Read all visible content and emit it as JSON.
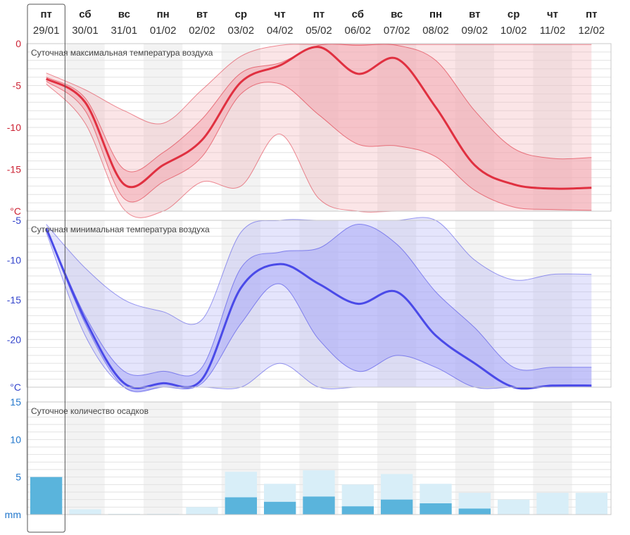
{
  "days": [
    {
      "name": "пт",
      "date": "29/01"
    },
    {
      "name": "сб",
      "date": "30/01"
    },
    {
      "name": "вс",
      "date": "31/01"
    },
    {
      "name": "пн",
      "date": "01/02"
    },
    {
      "name": "вт",
      "date": "02/02"
    },
    {
      "name": "ср",
      "date": "03/02"
    },
    {
      "name": "чт",
      "date": "04/02"
    },
    {
      "name": "пт",
      "date": "05/02"
    },
    {
      "name": "сб",
      "date": "06/02"
    },
    {
      "name": "вс",
      "date": "07/02"
    },
    {
      "name": "пн",
      "date": "08/02"
    },
    {
      "name": "вт",
      "date": "09/02"
    },
    {
      "name": "ср",
      "date": "10/02"
    },
    {
      "name": "чт",
      "date": "11/02"
    },
    {
      "name": "пт",
      "date": "12/02"
    }
  ],
  "colors": {
    "max_line": "#e03040",
    "max_band": "#f2a8b0",
    "min_line": "#4a4ae8",
    "min_band": "#aaaaf6",
    "precip_main": "#5ab4dc",
    "precip_light": "#d8eef8",
    "tick_red": "#cc2233",
    "tick_blue": "#3344cc",
    "tick_sky": "#2277cc"
  },
  "chart_data": [
    {
      "type": "area",
      "title": "Суточная максимальная температура воздуха",
      "unit": "°C",
      "ylim": [
        -20,
        0
      ],
      "yticks": [
        0,
        -5,
        -10,
        -15
      ],
      "x": [
        "29/01",
        "30/01",
        "31/01",
        "01/02",
        "02/02",
        "03/02",
        "04/02",
        "05/02",
        "06/02",
        "07/02",
        "08/02",
        "09/02",
        "10/02",
        "11/02",
        "12/02"
      ],
      "series": [
        {
          "role": "median",
          "values": [
            -4.2,
            -7.0,
            -16.8,
            -14.5,
            -11.5,
            -4.6,
            -2.6,
            -0.4,
            -3.6,
            -1.8,
            -7.6,
            -14.5,
            -16.8,
            -17.3,
            -17.2
          ]
        },
        {
          "role": "inner_upper",
          "values": [
            -4.0,
            -6.5,
            -15.0,
            -13.0,
            -9.0,
            -3.5,
            -2.3,
            -0.2,
            -0.2,
            -0.2,
            -2.0,
            -8.0,
            -12.5,
            -13.7,
            -13.6
          ]
        },
        {
          "role": "inner_lower",
          "values": [
            -4.5,
            -8.0,
            -18.5,
            -16.5,
            -13.5,
            -6.0,
            -4.8,
            -8.5,
            -12.0,
            -12.2,
            -13.5,
            -17.5,
            -19.5,
            -19.8,
            -19.9
          ]
        },
        {
          "role": "outer_upper",
          "values": [
            -3.5,
            -5.5,
            -8.0,
            -9.5,
            -5.5,
            -1.5,
            -0.2,
            -0.1,
            -0.1,
            -0.1,
            -0.1,
            -0.1,
            -0.1,
            -0.1,
            -0.1
          ]
        },
        {
          "role": "outer_lower",
          "values": [
            -4.8,
            -9.5,
            -19.8,
            -20.0,
            -16.5,
            -17.0,
            -10.8,
            -18.5,
            -20.0,
            -20.0,
            -20.0,
            -20.0,
            -20.0,
            -20.0,
            -20.0
          ]
        }
      ]
    },
    {
      "type": "area",
      "title": "Суточная минимальная температура воздуха",
      "unit": "°C",
      "ylim": [
        -26,
        -5
      ],
      "yticks": [
        -5,
        -10,
        -15,
        -20
      ],
      "x": [
        "29/01",
        "30/01",
        "31/01",
        "01/02",
        "02/02",
        "03/02",
        "04/02",
        "05/02",
        "06/02",
        "07/02",
        "08/02",
        "09/02",
        "10/02",
        "11/02",
        "12/02"
      ],
      "series": [
        {
          "role": "median",
          "values": [
            -6.0,
            -17.5,
            -25.5,
            -25.5,
            -25.0,
            -13.5,
            -10.5,
            -13.0,
            -15.5,
            -14.0,
            -19.5,
            -23.0,
            -26.0,
            -25.8,
            -25.8
          ]
        },
        {
          "role": "inner_upper",
          "values": [
            -6.0,
            -17.0,
            -24.0,
            -24.0,
            -23.5,
            -11.0,
            -9.0,
            -8.5,
            -5.5,
            -8.0,
            -14.0,
            -18.5,
            -23.5,
            -23.5,
            -23.5
          ]
        },
        {
          "role": "inner_lower",
          "values": [
            -6.0,
            -18.0,
            -26.0,
            -26.0,
            -25.5,
            -18.0,
            -13.0,
            -20.0,
            -24.0,
            -22.0,
            -23.5,
            -26.0,
            -26.0,
            -26.0,
            -26.0
          ]
        },
        {
          "role": "outer_upper",
          "values": [
            -5.5,
            -11.0,
            -15.0,
            -16.5,
            -17.5,
            -6.5,
            -5.0,
            -5.0,
            -5.0,
            -5.0,
            -5.0,
            -10.0,
            -12.5,
            -11.8,
            -11.8
          ]
        },
        {
          "role": "outer_lower",
          "values": [
            -6.5,
            -19.5,
            -26.0,
            -26.0,
            -26.0,
            -26.0,
            -23.0,
            -26.0,
            -26.0,
            -26.0,
            -26.0,
            -26.0,
            -26.0,
            -26.0,
            -26.0
          ]
        }
      ]
    },
    {
      "type": "bar",
      "title": "Суточное количество осадков",
      "unit": "mm",
      "ylim": [
        0,
        15
      ],
      "yticks": [
        15,
        10,
        5
      ],
      "categories": [
        "29/01",
        "30/01",
        "31/01",
        "01/02",
        "02/02",
        "03/02",
        "04/02",
        "05/02",
        "06/02",
        "07/02",
        "08/02",
        "09/02",
        "10/02",
        "11/02",
        "12/02"
      ],
      "series": [
        {
          "role": "likely",
          "values": [
            5.0,
            0.0,
            0.0,
            0.0,
            0.0,
            2.3,
            1.7,
            2.4,
            1.1,
            2.0,
            1.5,
            0.8,
            0.0,
            0.0,
            0.0
          ]
        },
        {
          "role": "possible",
          "values": [
            0.0,
            0.7,
            0.1,
            0.1,
            1.0,
            5.7,
            4.1,
            5.9,
            4.0,
            5.4,
            4.1,
            2.9,
            2.0,
            2.9,
            2.9
          ]
        }
      ]
    }
  ]
}
